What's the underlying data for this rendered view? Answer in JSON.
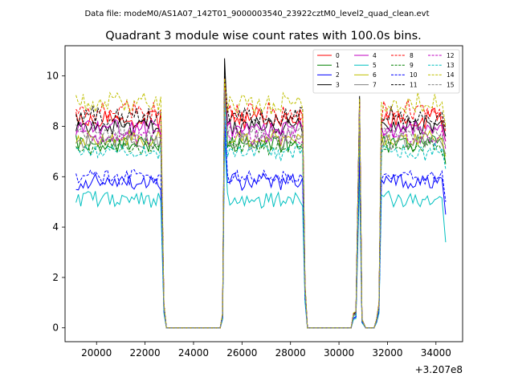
{
  "figure": {
    "suptitle": "Data file: modeM0/AS1A07_142T01_9000003540_23922cztM0_level2_quad_clean.evt"
  },
  "chart_data": {
    "type": "line",
    "title": "Quadrant 3 module wise count rates with 100.0s bins.",
    "xlabel": "",
    "ylabel": "",
    "x_offset_label": "+3.207e8",
    "xlim": [
      18700,
      35100
    ],
    "ylim": [
      -0.55,
      11.2
    ],
    "xticks": [
      20000,
      22000,
      24000,
      26000,
      28000,
      30000,
      32000,
      34000
    ],
    "yticks": [
      0,
      2,
      4,
      6,
      8,
      10
    ],
    "xtick_labels": [
      "20000",
      "22000",
      "24000",
      "26000",
      "28000",
      "30000",
      "32000",
      "34000"
    ],
    "ytick_labels": [
      "0",
      "2",
      "4",
      "6",
      "8",
      "10"
    ],
    "grid": false,
    "legend_placement": "top-right",
    "segment_template": [
      {
        "kind": "on",
        "start": 19150,
        "end": 22700
      },
      {
        "kind": "drop",
        "points": [
          [
            22780,
            0.85
          ],
          [
            22880,
            0
          ]
        ]
      },
      {
        "kind": "zero",
        "start": 22880,
        "end": 25100
      },
      {
        "kind": "rise",
        "points": [
          [
            25200,
            0.5
          ],
          [
            25280,
            "spike"
          ]
        ]
      },
      {
        "kind": "on",
        "start": 25400,
        "end": 28500
      },
      {
        "kind": "drop",
        "points": [
          [
            28600,
            1.5
          ],
          [
            28700,
            0
          ]
        ]
      },
      {
        "kind": "zero",
        "start": 28700,
        "end": 30500
      },
      {
        "kind": "rise",
        "points": [
          [
            30600,
            0.5
          ],
          [
            30700,
            0.55
          ],
          [
            30850,
            "peak"
          ]
        ]
      },
      {
        "kind": "drop",
        "points": [
          [
            30950,
            0.3
          ],
          [
            31100,
            0
          ]
        ]
      },
      {
        "kind": "zero",
        "start": 31100,
        "end": 31450
      },
      {
        "kind": "rise",
        "points": [
          [
            31550,
            0.3
          ],
          [
            31650,
            0.85
          ]
        ]
      },
      {
        "kind": "on",
        "start": 31750,
        "end": 34300
      },
      {
        "kind": "end",
        "points": [
          [
            34400,
            "last"
          ]
        ]
      }
    ],
    "series": [
      {
        "name": "0",
        "color": "#ff0000",
        "dash": "solid",
        "level": 8.3,
        "noise": 0.35,
        "spike": 9.8,
        "peak": 8.8,
        "last": 7.4
      },
      {
        "name": "1",
        "color": "#008000",
        "dash": "solid",
        "level": 7.3,
        "noise": 0.3,
        "spike": 9.4,
        "peak": 8.4,
        "last": 6.5
      },
      {
        "name": "2",
        "color": "#0000ff",
        "dash": "solid",
        "level": 5.8,
        "noise": 0.3,
        "spike": 8.2,
        "peak": 6.6,
        "last": 4.5
      },
      {
        "name": "3",
        "color": "#000000",
        "dash": "solid",
        "level": 8.0,
        "noise": 0.3,
        "spike": 10.7,
        "peak": 9.2,
        "last": 7.6
      },
      {
        "name": "4",
        "color": "#c000c0",
        "dash": "solid",
        "level": 7.9,
        "noise": 0.3,
        "spike": 9.6,
        "peak": 8.9,
        "last": 7.4
      },
      {
        "name": "5",
        "color": "#00c0c0",
        "dash": "solid",
        "level": 5.1,
        "noise": 0.3,
        "spike": 7.6,
        "peak": 5.9,
        "last": 3.4
      },
      {
        "name": "6",
        "color": "#c0c000",
        "dash": "solid",
        "level": 7.5,
        "noise": 0.3,
        "spike": 9.7,
        "peak": 8.6,
        "last": 6.8
      },
      {
        "name": "7",
        "color": "#808080",
        "dash": "solid",
        "level": 7.4,
        "noise": 0.3,
        "spike": 9.5,
        "peak": 8.5,
        "last": 6.9
      },
      {
        "name": "8",
        "color": "#ff0000",
        "dash": "dashed",
        "level": 8.6,
        "noise": 0.4,
        "spike": 9.9,
        "peak": 9.0,
        "last": 7.8
      },
      {
        "name": "9",
        "color": "#008000",
        "dash": "dashed",
        "level": 7.2,
        "noise": 0.3,
        "spike": 9.3,
        "peak": 8.3,
        "last": 6.6
      },
      {
        "name": "10",
        "color": "#0000ff",
        "dash": "dashed",
        "level": 6.0,
        "noise": 0.3,
        "spike": 8.4,
        "peak": 6.8,
        "last": 5.0
      },
      {
        "name": "11",
        "color": "#000000",
        "dash": "dashed",
        "level": 8.4,
        "noise": 0.35,
        "spike": 10.2,
        "peak": 9.1,
        "last": 7.9
      },
      {
        "name": "12",
        "color": "#c000c0",
        "dash": "dashed",
        "level": 7.6,
        "noise": 0.3,
        "spike": 9.5,
        "peak": 8.7,
        "last": 7.1
      },
      {
        "name": "13",
        "color": "#00c0c0",
        "dash": "dashed",
        "level": 7.0,
        "noise": 0.3,
        "spike": 9.2,
        "peak": 8.2,
        "last": 6.3
      },
      {
        "name": "14",
        "color": "#c0c000",
        "dash": "dashed",
        "level": 8.9,
        "noise": 0.4,
        "spike": 9.9,
        "peak": 9.1,
        "last": 8.0
      },
      {
        "name": "15",
        "color": "#808080",
        "dash": "dashed",
        "level": 7.7,
        "noise": 0.3,
        "spike": 9.4,
        "peak": 8.6,
        "last": 7.2
      }
    ]
  }
}
